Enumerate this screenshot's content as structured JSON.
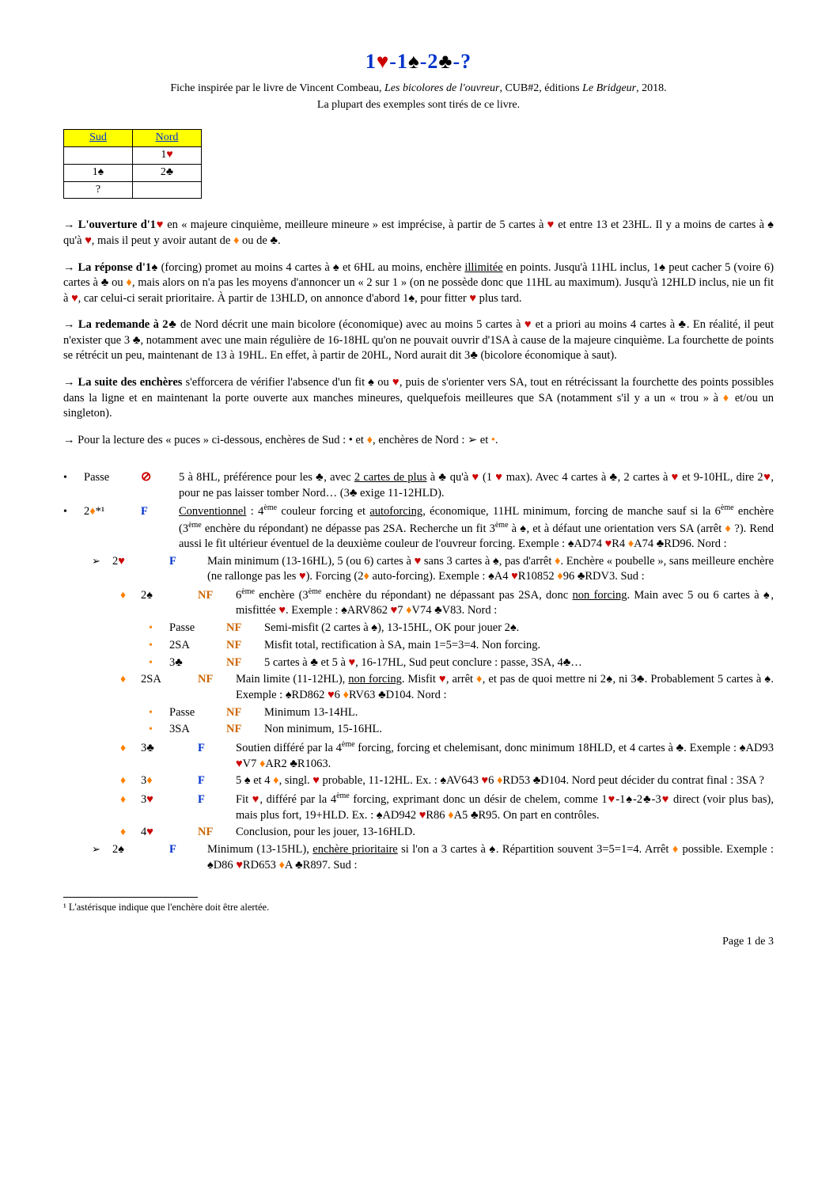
{
  "title_parts": [
    "1",
    "♥",
    "-1",
    "♠",
    "-2",
    "♣",
    "-?"
  ],
  "title_colors": {
    "heart": "#cc0000",
    "spade": "#000000",
    "club": "#000000",
    "diamond": "#ff8000",
    "link": "#0033cc"
  },
  "subtitle": "Fiche inspirée par le livre de Vincent Combeau, Les bicolores de l'ouvreur, CUB#2, éditions Le Bridgeur, 2018.",
  "subtitle2": "La plupart des exemples sont tirés de ce livre.",
  "bid_table": {
    "headers": [
      "Sud",
      "Nord"
    ],
    "rows": [
      [
        "",
        "1♥"
      ],
      [
        "1♠",
        "2♣"
      ],
      [
        "?",
        ""
      ]
    ]
  },
  "paragraphs": [
    "→ **L'ouverture d'1♥** en « majeure cinquième, meilleure mineure » est imprécise, à partir de 5 cartes à ♥ et entre 13 et 23HL. Il y a moins de cartes à ♠ qu'à ♥, mais il peut y avoir autant de ♦ ou de ♣.",
    "→ **La réponse d'1♠** (forcing) promet au moins 4 cartes à ♠ et 6HL au moins, enchère _illimitée_ en points. Jusqu'à 11HL inclus, 1♠ peut cacher 5 (voire 6) cartes à ♣ ou ♦, mais alors on n'a pas les moyens d'annoncer un « 2 sur 1 » (on ne possède donc que 11HL au maximum). Jusqu'à 12HLD inclus, nie un fit à ♥, car celui-ci serait prioritaire. À partir de 13HLD, on annonce d'abord 1♠, pour fitter ♥ plus tard.",
    "→ **La redemande à 2♣** de Nord décrit une main bicolore (économique) avec au moins 5 cartes à ♥ et a priori au moins 4 cartes à ♣. En réalité, il peut n'exister que 3 ♣, notamment avec une main régulière de 16-18HL qu'on ne pouvait ouvrir d'1SA à cause de la majeure cinquième. La fourchette de points se rétrécit un peu, maintenant de 13 à 19HL. En effet, à partir de 20HL, Nord aurait dit 3♣ (bicolore économique à saut).",
    "→ **La suite des enchères** s'efforcera de vérifier l'absence d'un fit ♠ ou ♥, puis de s'orienter vers SA, tout en rétrécissant la fourchette des points possibles dans la ligne et en maintenant la porte ouverte aux manches mineures, quelquefois meilleures que SA (notamment s'il y a un « trou » à ♦ et/ou un singleton).",
    "→ Pour la lecture des « puces » ci-dessous, enchères de Sud : • et ♦, enchères de Nord : ➢ et •."
  ],
  "items": [
    {
      "lvl": 0,
      "bullet": "dot-black",
      "bid": "Passe",
      "mark": "⊘",
      "markClass": "stop",
      "desc": "5 à 8HL, préférence pour les ♣, avec _2 cartes de plus_ à ♣ qu'à ♥ (1 ♥ max). Avec 4 cartes à ♣, 2 cartes à ♥ et 9-10HL, dire 2♥, pour ne pas laisser tomber Nord… (3♣ exige 11-12HLD)."
    },
    {
      "lvl": 0,
      "bullet": "dot-black",
      "bid": "2♦*¹",
      "mark": "F",
      "markClass": "F",
      "desc": "_Conventionnel_ : 4^ème couleur forcing et _autoforcing_, économique, 11HL minimum, forcing de manche sauf si la 6^ème enchère (3^ème enchère du répondant) ne dépasse pas 2SA. Recherche un fit 3^ème à ♠, et à défaut une orientation vers SA (arrêt ♦ ?). Rend aussi le fit ultérieur éventuel de la deuxième couleur de l'ouvreur forcing. Exemple : ♠AD74 ♥R4 ♦A74 ♣RD96. Nord :"
    },
    {
      "lvl": 1,
      "bullet": "tri",
      "bid": "2♥",
      "mark": "F",
      "markClass": "F",
      "desc": "Main minimum (13-16HL), 5 (ou 6) cartes à ♥ sans 3 cartes à ♠, pas d'arrêt ♦. Enchère « poubelle », sans meilleure enchère (ne rallonge pas les ♥). Forcing (2♦ auto-forcing). Exemple : ♠A4 ♥R10852 ♦96 ♣RDV3. Sud :"
    },
    {
      "lvl": 2,
      "bullet": "dia-orange",
      "bid": "2♠",
      "mark": "NF",
      "markClass": "NF",
      "desc": "6^ème enchère (3^ème enchère du répondant) ne dépassant pas 2SA, donc _non forcing_. Main avec 5 ou 6 cartes à ♠, misfittée ♥. Exemple : ♠ARV862 ♥7 ♦V74 ♣V83. Nord :"
    },
    {
      "lvl": 3,
      "bullet": "dot-orange",
      "bid": "Passe",
      "mark": "NF",
      "markClass": "NF",
      "desc": "Semi-misfit (2 cartes à ♠), 13-15HL, OK pour jouer 2♠."
    },
    {
      "lvl": 3,
      "bullet": "dot-orange",
      "bid": "2SA",
      "mark": "NF",
      "markClass": "NF",
      "desc": "Misfit total, rectification à SA, main 1=5=3=4. Non forcing."
    },
    {
      "lvl": 3,
      "bullet": "dot-orange",
      "bid": "3♣",
      "mark": "NF",
      "markClass": "NF",
      "desc": "5 cartes à ♣ et 5 à ♥, 16-17HL, Sud peut conclure : passe, 3SA, 4♣…"
    },
    {
      "lvl": 2,
      "bullet": "dia-orange",
      "bid": "2SA",
      "mark": "NF",
      "markClass": "NF",
      "desc": "Main limite (11-12HL), _non forcing_. Misfit ♥, arrêt ♦, et pas de quoi mettre ni 2♠, ni 3♣. Probablement 5 cartes à ♠. Exemple : ♠RD862 ♥6 ♦RV63 ♣D104. Nord :"
    },
    {
      "lvl": 3,
      "bullet": "dot-orange",
      "bid": "Passe",
      "mark": "NF",
      "markClass": "NF",
      "desc": "Minimum 13-14HL."
    },
    {
      "lvl": 3,
      "bullet": "dot-orange",
      "bid": "3SA",
      "mark": "NF",
      "markClass": "NF",
      "desc": "Non minimum, 15-16HL."
    },
    {
      "lvl": 2,
      "bullet": "dia-orange",
      "bid": "3♣",
      "mark": "F",
      "markClass": "F",
      "desc": "Soutien différé par la 4^ème forcing, forcing et chelemisant, donc minimum 18HLD, et 4 cartes à ♣. Exemple : ♠AD93 ♥V7 ♦AR2 ♣R1063."
    },
    {
      "lvl": 2,
      "bullet": "dia-orange",
      "bid": "3♦",
      "mark": "F",
      "markClass": "F",
      "desc": "5 ♠ et 4 ♦, singl. ♥ probable, 11-12HL. Ex. : ♠AV643 ♥6 ♦RD53 ♣D104. Nord peut décider du contrat final : 3SA ?"
    },
    {
      "lvl": 2,
      "bullet": "dia-orange",
      "bid": "3♥",
      "mark": "F",
      "markClass": "F",
      "desc": "Fit ♥, différé par la 4^ème forcing, exprimant donc un désir de chelem, comme 1♥-1♠-2♣-3♥ direct (voir plus bas), mais plus fort, 19+HLD. Ex. : ♠AD942 ♥R86 ♦A5 ♣R95. On part en contrôles."
    },
    {
      "lvl": 2,
      "bullet": "dia-orange",
      "bid": "4♥",
      "mark": "NF",
      "markClass": "NF",
      "desc": "Conclusion, pour les jouer, 13-16HLD."
    },
    {
      "lvl": 1,
      "bullet": "tri",
      "bid": "2♠",
      "mark": "F",
      "markClass": "F",
      "desc": "Minimum (13-15HL), _enchère prioritaire_ si l'on a 3 cartes à ♠. Répartition souvent 3=5=1=4. Arrêt ♦ possible. Exemple : ♠D86 ♥RD653 ♦A ♣R897. Sud :"
    }
  ],
  "footnote": "¹ L'astérisque indique que l'enchère doit être alertée.",
  "page_label": "Page 1 de 3"
}
